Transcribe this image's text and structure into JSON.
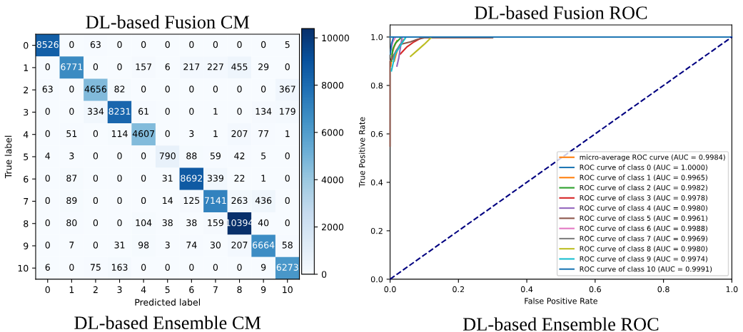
{
  "chart_data": [
    {
      "type": "heatmap",
      "title": "DL-based Fusion CM",
      "xlabel": "Predicted label",
      "ylabel": "True label",
      "annotations": [
        "DL-based Ensemble CM"
      ],
      "categories": [
        "0",
        "1",
        "2",
        "3",
        "4",
        "5",
        "6",
        "7",
        "8",
        "9",
        "10"
      ],
      "y_categories": [
        "0",
        "1",
        "2",
        "3",
        "4",
        "5",
        "6",
        "7",
        "8",
        "9",
        "10"
      ],
      "cells": [
        [
          8526,
          0,
          63,
          0,
          0,
          0,
          0,
          0,
          0,
          0,
          5
        ],
        [
          0,
          6771,
          0,
          0,
          157,
          6,
          217,
          227,
          455,
          29,
          0
        ],
        [
          63,
          0,
          4656,
          82,
          0,
          0,
          0,
          0,
          0,
          0,
          367
        ],
        [
          0,
          0,
          334,
          8231,
          61,
          0,
          0,
          1,
          0,
          134,
          179
        ],
        [
          0,
          51,
          0,
          114,
          4607,
          0,
          3,
          1,
          207,
          77,
          1
        ],
        [
          4,
          3,
          0,
          0,
          0,
          790,
          88,
          59,
          42,
          5,
          0
        ],
        [
          0,
          87,
          0,
          0,
          0,
          31,
          8692,
          339,
          22,
          1,
          0
        ],
        [
          0,
          89,
          0,
          0,
          0,
          14,
          125,
          7141,
          263,
          436,
          0
        ],
        [
          0,
          80,
          0,
          0,
          104,
          38,
          38,
          159,
          10394,
          40,
          0
        ],
        [
          0,
          7,
          0,
          31,
          98,
          3,
          74,
          30,
          207,
          6664,
          58
        ],
        [
          6,
          0,
          75,
          163,
          0,
          0,
          0,
          0,
          0,
          9,
          6273
        ]
      ],
      "data_labels": true,
      "clim": [
        0,
        10394
      ],
      "cticks": [
        0,
        2000,
        4000,
        6000,
        8000,
        10000
      ]
    },
    {
      "type": "line",
      "title": "DL-based Fusion ROC",
      "xlabel": "False Positive Rate",
      "ylabel": "True Positive Rate",
      "annotations": [
        "DL-based Ensemble ROC"
      ],
      "xlim": [
        0,
        1
      ],
      "ylim": [
        0,
        1.05
      ],
      "xticks": [
        {
          "value": 0,
          "label": "0.0"
        },
        {
          "value": 0.2,
          "label": "0.2"
        },
        {
          "value": 0.4,
          "label": "0.4"
        },
        {
          "value": 0.6,
          "label": "0.6"
        },
        {
          "value": 0.8,
          "label": "0.8"
        },
        {
          "value": 1,
          "label": "1.0"
        }
      ],
      "yticks": [
        {
          "value": 0,
          "label": "0.0"
        },
        {
          "value": 0.2,
          "label": "0.2"
        },
        {
          "value": 0.4,
          "label": "0.4"
        },
        {
          "value": 0.6,
          "label": "0.6"
        },
        {
          "value": 0.8,
          "label": "0.8"
        },
        {
          "value": 1,
          "label": "1.0"
        }
      ],
      "legend": "bottom right",
      "series": [
        {
          "name": "micro-average ROC curve (AUC = 0.9984)",
          "color": "#ff7f0e",
          "x": [
            0.002,
            0.006,
            0.012,
            0.02
          ],
          "values": [
            0.88,
            0.93,
            0.96,
            0.985
          ]
        },
        {
          "name": "ROC curve of class 0 (AUC = 1.0000)",
          "color": "#1f77b4",
          "x": [
            0,
            0.01
          ],
          "values": [
            1,
            1
          ]
        },
        {
          "name": "ROC curve of class 1 (AUC = 0.9965)",
          "color": "#ff7f0e",
          "x": [
            0.012,
            0.02,
            0.03,
            0.04
          ],
          "values": [
            0.9,
            0.94,
            0.97,
            0.99
          ]
        },
        {
          "name": "ROC curve of class 2 (AUC = 0.9982)",
          "color": "#2ca02c",
          "x": [
            0.004,
            0.008,
            0.016,
            0.03
          ],
          "values": [
            0.9,
            0.95,
            0.975,
            0.995
          ]
        },
        {
          "name": "ROC curve of class 3 (AUC = 0.9978)",
          "color": "#d62728",
          "x": [
            0.03,
            0.05,
            0.07,
            0.09
          ],
          "values": [
            0.93,
            0.96,
            0.98,
            0.995
          ]
        },
        {
          "name": "ROC curve of class 4 (AUC = 0.9980)",
          "color": "#9467bd",
          "x": [
            0.02,
            0.025,
            0.035
          ],
          "values": [
            0.88,
            0.91,
            0.998
          ]
        },
        {
          "name": "ROC curve of class 5 (AUC = 0.9961)",
          "color": "#8c564b",
          "x": [
            0,
            0,
            0.03,
            0.06,
            0.08,
            0.1,
            0.3
          ],
          "values": [
            0.55,
            0.9,
            0.97,
            0.98,
            0.99,
            0.997,
            0.997
          ]
        },
        {
          "name": "ROC curve of class 6 (AUC = 0.9988)",
          "color": "#e377c2",
          "x": [
            0.003,
            0.008,
            0.015
          ],
          "values": [
            0.95,
            0.98,
            0.997
          ]
        },
        {
          "name": "ROC curve of class 7 (AUC = 0.9969)",
          "color": "#7f7f7f",
          "x": [
            0.008,
            0.018,
            0.035
          ],
          "values": [
            0.91,
            0.945,
            0.975
          ]
        },
        {
          "name": "ROC curve of class 8 (AUC = 0.9980)",
          "color": "#bcbd22",
          "x": [
            0.06,
            0.08,
            0.1,
            0.12
          ],
          "values": [
            0.92,
            0.945,
            0.97,
            0.998
          ]
        },
        {
          "name": "ROC curve of class 9 (AUC = 0.9974)",
          "color": "#17becf",
          "x": [
            0.004,
            0.015,
            0.03,
            0.045
          ],
          "values": [
            0.86,
            0.93,
            0.965,
            0.996
          ]
        },
        {
          "name": "ROC curve of class 10 (AUC = 0.9991)",
          "color": "#1f77b4",
          "x": [
            0.001,
            0.004,
            0.01,
            1
          ],
          "values": [
            0.93,
            0.97,
            1,
            1
          ]
        },
        {
          "color": "#000080",
          "line_style": "dashed",
          "x": [
            0,
            1
          ],
          "values": [
            0,
            1
          ]
        }
      ]
    }
  ]
}
